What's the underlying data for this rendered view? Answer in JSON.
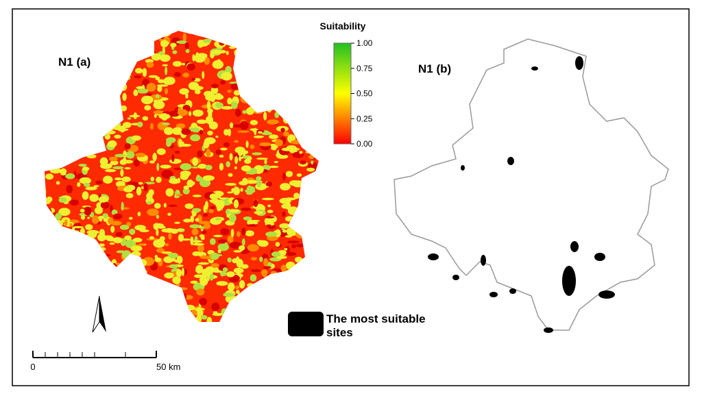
{
  "colorbar": {
    "title": "Suitability",
    "ylim": [
      0,
      1
    ],
    "ticks": [
      {
        "value": 1,
        "label": "1.00"
      },
      {
        "value": 0.75,
        "label": "0.75"
      },
      {
        "value": 0.5,
        "label": "0.50"
      },
      {
        "value": 0.25,
        "label": "0.25"
      },
      {
        "value": 0,
        "label": "0.00"
      }
    ]
  },
  "panels": [
    {
      "label": "N1 (a)"
    },
    {
      "label": "N1 (b)"
    }
  ],
  "legend": {
    "label": "The most suitable sites"
  },
  "scale_bar": {
    "range": [
      0,
      50
    ],
    "ticks": [
      0,
      {
        "value": 50,
        "label": "50 km"
      }
    ]
  }
}
